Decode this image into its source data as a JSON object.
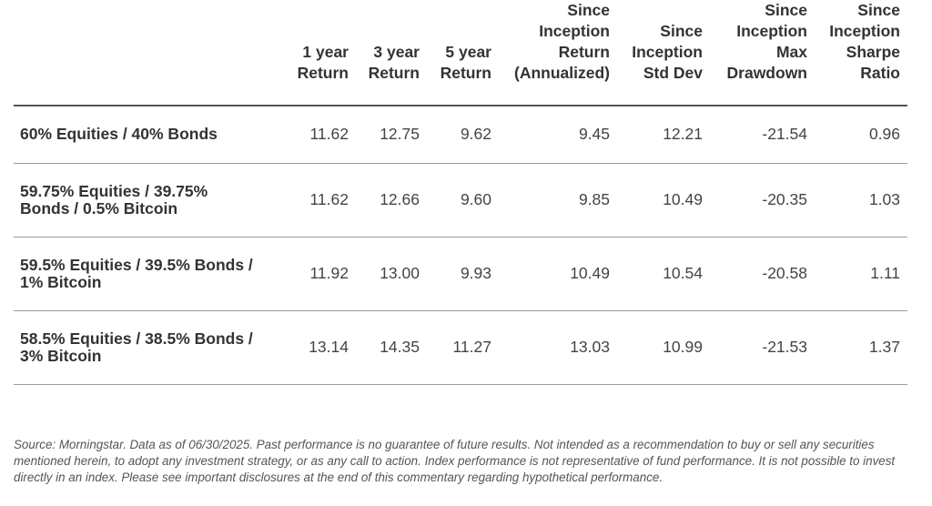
{
  "chart_data": {
    "type": "table",
    "columns": [
      "",
      [
        "1 year",
        "Return"
      ],
      [
        "3 year",
        "Return"
      ],
      [
        "5 year",
        "Return"
      ],
      [
        "Since",
        "Inception",
        "Return",
        "(Annualized)"
      ],
      [
        "Since",
        "Inception",
        "Std Dev"
      ],
      [
        "Since",
        "Inception",
        "Max",
        "Drawdown"
      ],
      [
        "Since",
        "Inception",
        "Sharpe",
        "Ratio"
      ]
    ],
    "rows": [
      {
        "label": [
          "60% Equities / 40% Bonds"
        ],
        "values": [
          "11.62",
          "12.75",
          "9.62",
          "9.45",
          "12.21",
          "-21.54",
          "0.96"
        ]
      },
      {
        "label": [
          "59.75% Equities / 39.75%",
          "Bonds / 0.5% Bitcoin"
        ],
        "values": [
          "11.62",
          "12.66",
          "9.60",
          "9.85",
          "10.49",
          "-20.35",
          "1.03"
        ]
      },
      {
        "label": [
          "59.5% Equities / 39.5% Bonds /",
          "1% Bitcoin"
        ],
        "values": [
          "11.92",
          "13.00",
          "9.93",
          "10.49",
          "10.54",
          "-20.58",
          "1.11"
        ]
      },
      {
        "label": [
          "58.5% Equities / 38.5% Bonds /",
          "3% Bitcoin"
        ],
        "values": [
          "13.14",
          "14.35",
          "11.27",
          "13.03",
          "10.99",
          "-21.53",
          "1.37"
        ]
      }
    ]
  },
  "footnote": "Source: Morningstar. Data as of 06/30/2025. Past performance is no guarantee of future results. Not intended as a recommendation to buy or sell any securities mentioned herein, to adopt any investment strategy, or as any call to action. Index performance is not representative of fund performance. It is not possible to invest directly in an index. Please see important disclosures at the end of this commentary regarding hypothetical performance."
}
